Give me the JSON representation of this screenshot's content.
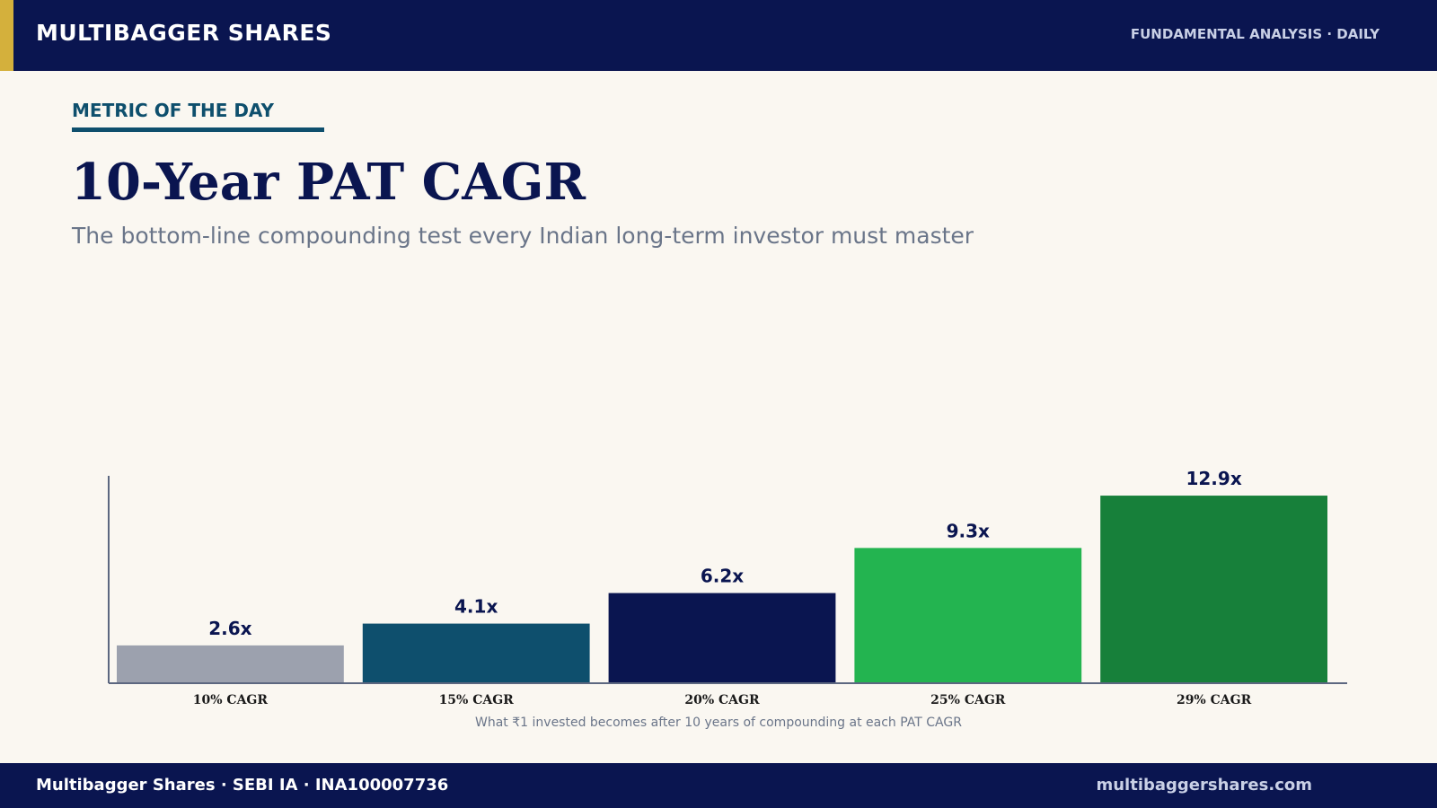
{
  "header": {
    "brand": "MULTIBAGGER SHARES",
    "tagline": "FUNDAMENTAL ANALYSIS · DAILY"
  },
  "eyebrow": "METRIC OF THE DAY",
  "title": "10-Year PAT CAGR",
  "subtitle": "The bottom-line compounding test every Indian long-term investor must master",
  "caption": "What ₹1 invested becomes after 10 years of compounding at each PAT CAGR",
  "footer": {
    "left": "Multibagger Shares · SEBI IA · INA100007736",
    "right": "multibaggershares.com"
  },
  "chart_data": {
    "type": "bar",
    "categories": [
      "10% CAGR",
      "15% CAGR",
      "20% CAGR",
      "25% CAGR",
      "29% CAGR"
    ],
    "values": [
      2.6,
      4.1,
      6.2,
      9.3,
      12.9
    ],
    "value_labels": [
      "2.6x",
      "4.1x",
      "6.2x",
      "9.3x",
      "12.9x"
    ],
    "colors": [
      "#9ca1ae",
      "#0e4f6d",
      "#0a1550",
      "#23b450",
      "#17803a"
    ],
    "axis_color": "#5c6780",
    "label_color": "#0a1550",
    "tick_label_color": "#1a1a1a",
    "ylim": [
      0,
      14.2
    ],
    "grid": false,
    "legend": "none"
  }
}
